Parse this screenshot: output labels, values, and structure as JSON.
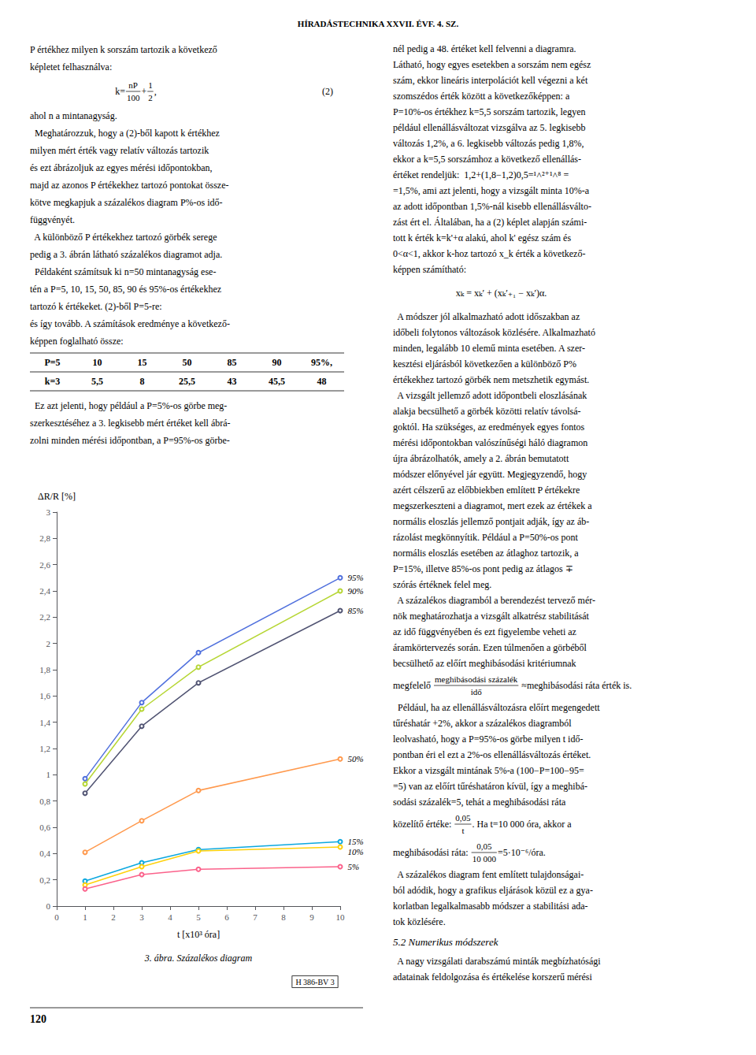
{
  "chart_data": {
    "type": "line",
    "title": "3. ábra. Százalékos diagram",
    "xlabel": "t [x10³ óra]",
    "ylabel": "ΔR/R [%]",
    "marker": "circle",
    "grid": false,
    "xlim": [
      0,
      10
    ],
    "ylim": [
      0,
      3.0
    ],
    "xticks": [
      0,
      1,
      2,
      3,
      4,
      5,
      6,
      7,
      8,
      9,
      10
    ],
    "yticks": [
      0,
      {
        "value": 0.2,
        "label": "0,2"
      },
      {
        "value": 0.4,
        "label": "0,4"
      },
      {
        "value": 0.6,
        "label": "0,6"
      },
      {
        "value": 0.8,
        "label": "0,8"
      },
      1,
      {
        "value": 1.2,
        "label": "1,2"
      },
      {
        "value": 1.4,
        "label": "1,4"
      },
      {
        "value": 1.6,
        "label": "1,6"
      },
      {
        "value": 1.8,
        "label": "1,8"
      },
      2,
      {
        "value": 2.2,
        "label": "2,2"
      },
      {
        "value": 2.4,
        "label": "2,4"
      },
      {
        "value": 2.6,
        "label": "2,6"
      },
      {
        "value": 2.8,
        "label": "2,8"
      },
      3
    ],
    "x": [
      1,
      3,
      5,
      10
    ],
    "series": [
      {
        "name": "95%",
        "values": [
          0.97,
          1.55,
          1.93,
          2.5
        ]
      },
      {
        "name": "90%",
        "values": [
          0.93,
          1.5,
          1.82,
          2.4
        ]
      },
      {
        "name": "85%",
        "values": [
          0.86,
          1.37,
          1.7,
          2.25
        ]
      },
      {
        "name": "50%",
        "values": [
          0.41,
          0.65,
          0.88,
          1.12
        ]
      },
      {
        "name": "15%",
        "values": [
          0.19,
          0.33,
          0.43,
          0.49
        ]
      },
      {
        "name": "10%",
        "values": [
          0.16,
          0.3,
          0.42,
          0.45
        ]
      },
      {
        "name": "5%",
        "values": [
          0.13,
          0.24,
          0.28,
          0.3
        ]
      }
    ],
    "annotations": {
      "header": "HÍRADÁSTECHNIKA XXVII. ÉVF. 4. SZ.",
      "page_number": "120",
      "watermark": "H 386-BV 3",
      "left_column": [
        "P értékhez milyen k sorszám tartozik a következő",
        "képletet felhasználva:",
        {
          "formula": [
            "k=",
            {
              "num": "nP",
              "den": "100"
            },
            "+",
            {
              "num": "1",
              "den": "2"
            },
            ","
          ],
          "tag": "(2)"
        },
        "ahol n a mintanagyság.",
        "  Meghatározzuk, hogy a (2)-ből kapott k értékhez",
        "milyen mért érték vagy relatív változás tartozik",
        "és ezt ábrázoljuk az egyes mérési időpontokban,",
        "majd az azonos P értékekhez tartozó pontokat össze-",
        "kötve megkapjuk a százalékos diagram P%-os idő-",
        "függvényét.",
        "  A különböző P értékekhez tartozó görbék serege",
        "pedig a 3. ábrán látható százalékos diagramot adja.",
        "  Példaként számítsuk ki n=50 mintanagyság ese-",
        "tén a P=5, 10, 15, 50, 85, 90 és 95%-os értékekhez",
        "tartozó k értékeket. (2)-ből P=5-re:",
        "és így tovább. A számítások eredménye a következő-",
        "képpen foglalható össze:",
        {
          "table": [
            [
              "P=5",
              "10",
              "15",
              "50",
              "85",
              "90",
              "95%,"
            ],
            [
              "k=3",
              "5,5",
              "8",
              "25,5",
              "43",
              "45,5",
              "48"
            ]
          ]
        },
        "  Ez azt jelenti, hogy például a P=5%-os görbe meg-",
        "szerkesztéséhez a 3. legkisebb mért értéket kell ábrá-",
        "zolni minden mérési időpontban, a P=95%-os görbe-"
      ],
      "right_column": [
        "nél pedig a 48. értéket kell felvenni a diagramra.",
        "Látható, hogy egyes esetekben a sorszám nem egész",
        "szám, ekkor lineáris interpolációt kell végezni a két",
        "szomszédos érték között a következőképpen: a",
        "P=10%-os értékhez k=5,5 sorszám tartozik, legyen",
        "például ellenállásváltozat vizsgálva az 5. legkisebb",
        "változás 1,2%, a 6. legkisebb változás pedig 1,8%,",
        "ekkor a k=5,5 sorszámhoz a következő ellenállás-",
        "értéket rendeljük:  1,2+(1,8−1,2)0,5=¹˄²⁺¹˄⁸ =",
        "=1,5%, ami azt jelenti, hogy a vizsgált minta 10%-a",
        "az adott időpontban 1,5%-nál kisebb ellenállásválto-",
        "zást ért el. Általában, ha a (2) képlet alapján számi-",
        "tott k érték k=k'+α alakú, ahol k' egész szám és",
        "0<α<1, akkor k-hoz tartozó x_k érték a következő-",
        "képpen számítható:",
        {
          "formula": [
            "xₖ = xₖ′ + (xₖ′₊₁ − xₖ′)α."
          ]
        },
        "  A módszer jól alkalmazható adott időszakban az",
        "időbeli folytonos változások közlésére. Alkalmazható",
        "minden, legalább 10 elemű minta esetében. A szer-",
        "kesztési eljárásból következően a különböző P%",
        "értékekhez tartozó görbék nem metszhetik egymást.",
        "  A vizsgált jellemző adott időpontbeli eloszlásának",
        "alakja becsülhető a görbék közötti relatív távolsá-",
        "goktól. Ha szükséges, az eredmények egyes fontos",
        "mérési időpontokban valószínűségi háló diagramon",
        "újra ábrázolhatók, amely a 2. ábrán bemutatott",
        "módszer előnyével jár együtt. Megjegyzendő, hogy",
        "azért célszerű az előbbiekben említett P értékekre",
        "megszerkeszteni a diagramot, mert ezek az értékek a",
        "normális eloszlás jellemző pontjait adják, így az áb-",
        "rázolást megkönnyítik. Például a P=50%-os pont",
        "normális eloszlás esetében az átlaghoz tartozik, a",
        "P=15%, illetve 85%-os pont pedig az átlagos ∓",
        "szórás értéknek felel meg.",
        "  A százalékos diagramból a berendezést tervező mér-",
        "nök meghatározhatja a vizsgált alkatrész stabilitását",
        "az idő függvényében és ezt figyelembe veheti az",
        "áramkörtervezés során. Ezen túlmenően a görbéből",
        "becsülhető az előírt meghibásodási kritériumnak",
        [
          "megfelelő ",
          {
            "num": "meghibásodási százalék",
            "den": "idő"
          },
          " ≈meghibásodási ráta érték is."
        ],
        "  Például, ha az ellenállásváltozásra előírt megengedett",
        "tűréshatár +2%, akkor a százalékos diagramból",
        "leolvasható, hogy a P=95%-os görbe milyen t idő-",
        "pontban éri el ezt a 2%-os ellenállásváltozás értéket.",
        "Ekkor a vizsgált mintának 5%-a (100−P=100−95=",
        "=5) van az előírt tűréshatáron kívül, így a meghibá-",
        "sodási százalék=5, tehát a meghibásodási ráta",
        [
          "közelítő értéke: ",
          {
            "num": "0,05",
            "den": "t"
          },
          ". Ha t=10 000 óra, akkor a"
        ],
        [
          "meghibásodási ráta: ",
          {
            "num": "0,05",
            "den": "10 000"
          },
          "=5·10⁻⁶/óra."
        ],
        "  A százalékos diagram fent említett tulajdonságai-",
        "ból adódik, hogy a grafikus eljárások közül ez a gya-",
        "korlatban legalkalmasabb módszer a stabilitási ada-",
        "tok közlésére.",
        {
          "heading": "5.2 Numerikus módszerek"
        },
        "  A nagy vizsgálati darabszámú minták megbízhatósági",
        "adatainak feldolgozása és értékelése korszerű mérési"
      ]
    }
  }
}
